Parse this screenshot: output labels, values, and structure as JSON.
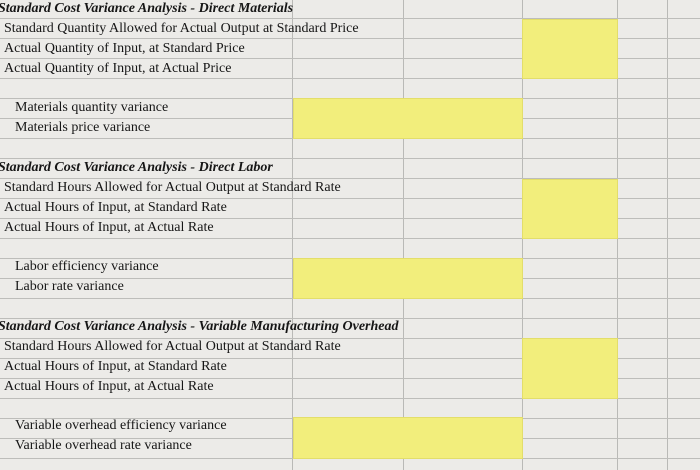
{
  "sections": [
    {
      "heading": "Standard Cost Variance Analysis - Direct Materials",
      "rows": [
        "Standard Quantity Allowed for Actual Output at Standard Price",
        "Actual Quantity of Input, at Standard Price",
        "Actual Quantity of Input, at Actual Price"
      ],
      "variances": [
        "Materials quantity variance",
        "Materials price variance"
      ]
    },
    {
      "heading": "Standard Cost Variance Analysis - Direct Labor",
      "rows": [
        "Standard Hours Allowed for Actual Output at Standard Rate",
        "Actual Hours of Input, at Standard Rate",
        "Actual Hours of Input, at Actual Rate"
      ],
      "variances": [
        "Labor efficiency variance",
        "Labor rate variance"
      ]
    },
    {
      "heading": "Standard Cost Variance Analysis - Variable Manufacturing Overhead",
      "rows": [
        "Standard Hours Allowed for Actual Output at Standard Rate",
        "Actual Hours of Input, at Standard Rate",
        "Actual Hours of Input, at Actual Rate"
      ],
      "variances": [
        "Variable overhead efficiency variance",
        "Variable overhead rate variance"
      ]
    }
  ],
  "colors": {
    "input_fill": "#f2ee7c",
    "grid_line": "#bdbdba",
    "sheet_bg": "#ecebe8"
  }
}
